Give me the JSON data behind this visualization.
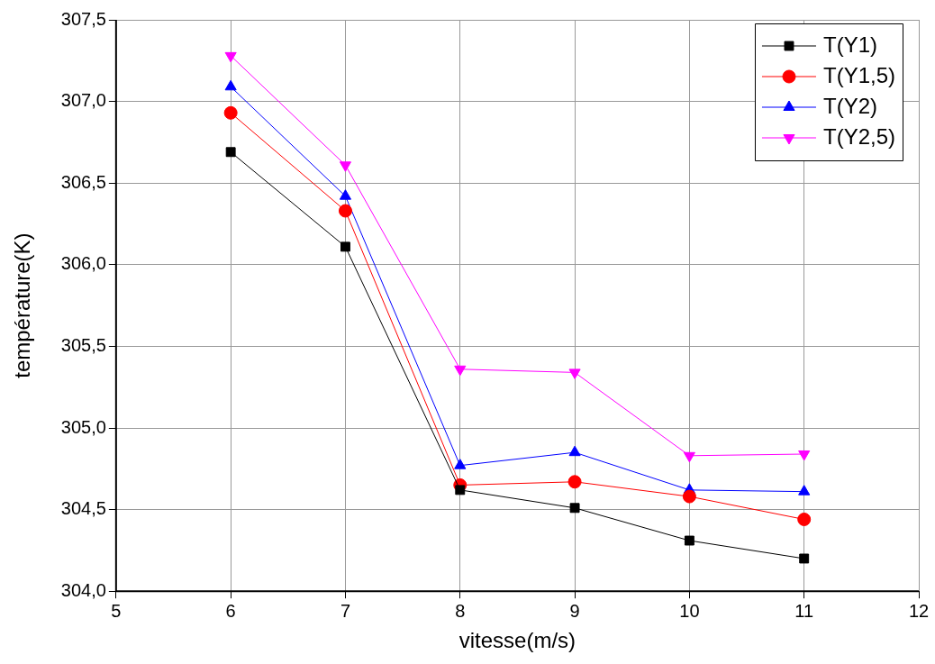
{
  "chart_data": {
    "type": "line",
    "xlabel": "vitesse(m/s)",
    "ylabel": "température(K)",
    "x": [
      6,
      7,
      8,
      9,
      10,
      11
    ],
    "series": [
      {
        "name": "T(Y1)",
        "color": "#000000",
        "marker": "square",
        "values": [
          306.69,
          306.11,
          304.62,
          304.51,
          304.31,
          304.2
        ]
      },
      {
        "name": "T(Y1,5)",
        "color": "#ff0000",
        "marker": "circle",
        "values": [
          306.93,
          306.33,
          304.65,
          304.67,
          304.58,
          304.44
        ]
      },
      {
        "name": "T(Y2)",
        "color": "#0000ff",
        "marker": "triangle",
        "values": [
          307.09,
          306.42,
          304.77,
          304.85,
          304.62,
          304.61
        ]
      },
      {
        "name": "T(Y2,5)",
        "color": "#ff00ff",
        "marker": "triangle-down",
        "values": [
          307.28,
          306.61,
          305.36,
          305.34,
          304.83,
          304.84
        ]
      }
    ],
    "xlim": [
      5,
      12
    ],
    "xticks": [
      5,
      6,
      7,
      8,
      9,
      10,
      11,
      12
    ],
    "ylim": [
      304,
      307.5
    ],
    "yticks": [
      {
        "value": 304,
        "label": "304,0"
      },
      {
        "value": 304.5,
        "label": "304,5"
      },
      {
        "value": 305,
        "label": "305,0"
      },
      {
        "value": 305.5,
        "label": "305,5"
      },
      {
        "value": 306,
        "label": "306,0"
      },
      {
        "value": 306.5,
        "label": "306,5"
      },
      {
        "value": 307,
        "label": "307,0"
      },
      {
        "value": 307.5,
        "label": "307,5"
      }
    ],
    "grid": true,
    "legend": "top right",
    "line_style": "solid"
  }
}
